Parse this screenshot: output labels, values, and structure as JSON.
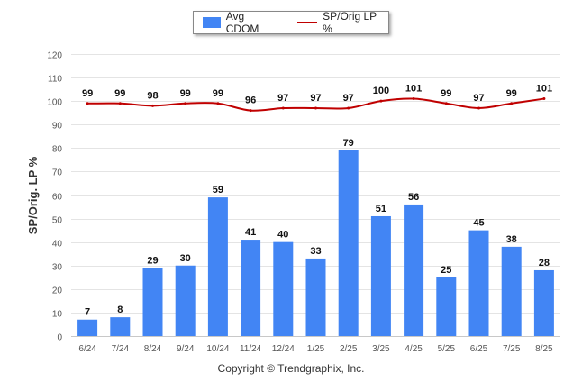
{
  "legend": {
    "bar_label": "Avg CDOM",
    "line_label": "SP/Orig LP %"
  },
  "footer": {
    "copyright": "Copyright © Trendgraphix, Inc."
  },
  "colors": {
    "bar": "#4285f4",
    "line": "#c00000",
    "grid": "#e4e4e4"
  },
  "chart_data": {
    "type": "bar",
    "title": "",
    "xlabel": "",
    "ylabel": "SP/Orig. LP %",
    "ylim": [
      0,
      120
    ],
    "yticks": [
      0,
      10,
      20,
      30,
      40,
      50,
      60,
      70,
      80,
      90,
      100,
      110,
      120
    ],
    "grid": true,
    "legend_position": "top-center",
    "categories": [
      "6/24",
      "7/24",
      "8/24",
      "9/24",
      "10/24",
      "11/24",
      "12/24",
      "1/25",
      "2/25",
      "3/25",
      "4/25",
      "5/25",
      "6/25",
      "7/25",
      "8/25"
    ],
    "series": [
      {
        "name": "Avg CDOM",
        "type": "bar",
        "values": [
          7,
          8,
          29,
          30,
          59,
          41,
          40,
          33,
          79,
          51,
          56,
          25,
          45,
          38,
          28
        ]
      },
      {
        "name": "SP/Orig LP %",
        "type": "line",
        "values": [
          99,
          99,
          98,
          99,
          99,
          96,
          97,
          97,
          97,
          100,
          101,
          99,
          97,
          99,
          101
        ]
      }
    ]
  }
}
